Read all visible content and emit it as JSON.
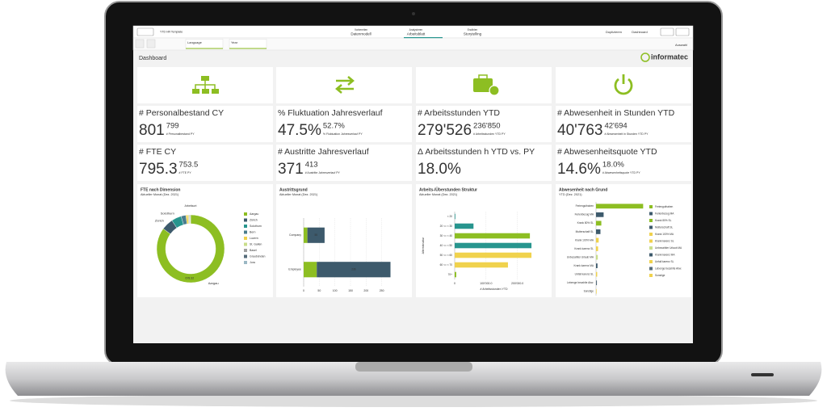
{
  "toolbar": {
    "app_name": "YTD HR Template",
    "tabs": [
      {
        "caption": "Vorbereiten",
        "label": "Datenmodell"
      },
      {
        "caption": "Analysieren",
        "label": "Arbeitsblatt"
      },
      {
        "caption": "Erzählen",
        "label": "Storytelling"
      }
    ],
    "actions": [
      "Duplizieren",
      "Dashboard"
    ]
  },
  "filters": [
    "Language",
    "Year"
  ],
  "sheet": {
    "title": "Dashboard",
    "logo": "informatec",
    "selection": "Auswahl"
  },
  "kpis": [
    {
      "title": "# Personalbestand CY",
      "value": "801",
      "sub_value": "799",
      "sub_label": "# Personalbestand PY"
    },
    {
      "title": "% Fluktuation Jahresverlauf",
      "value": "47.5%",
      "sub_value": "52.7%",
      "sub_label": "% Fluktuation Jahresverlauf PY"
    },
    {
      "title": "# Arbeitsstunden YTD",
      "value": "279'526",
      "sub_value": "236'850",
      "sub_label": "# Arbeitsstunden YTD PY"
    },
    {
      "title": "# Abwesenheit in Stunden YTD",
      "value": "40'763",
      "sub_value": "42'694",
      "sub_label": "# Abwesenheit in Stunden YTD PY"
    },
    {
      "title": "# FTE CY",
      "value": "795.3",
      "sub_value": "753.5",
      "sub_label": "# FTE PY"
    },
    {
      "title": "# Austritte Jahresverlauf",
      "value": "371",
      "sub_value": "413",
      "sub_label": "# Austritte Jahresverlauf PY"
    },
    {
      "title": "Δ Arbeitsstunden h YTD vs. PY",
      "value": "18.0%"
    },
    {
      "title": "# Abwesenheitsquote YTD",
      "value": "14.6%",
      "sub_value": "18.0%",
      "sub_label": "# Abwesenheitsquote YTD PY"
    }
  ],
  "charts": [
    {
      "type": "donut",
      "title": "FTE nach Dimension",
      "subtitle": "Aktueller Monat (Dez. 2021)",
      "dimension": "Arbeitsort",
      "categories": [
        "Aargau",
        "Zürich",
        "Solothurn",
        "Bern",
        "Luzern",
        "St. Gallen",
        "Basel",
        "Graubünden",
        "Jura"
      ],
      "values": [
        678.32,
        45,
        38,
        18,
        8,
        4,
        3,
        2,
        1
      ],
      "colors": [
        "#8dbe22",
        "#3d5a6c",
        "#27958e",
        "#4a7d8e",
        "#f0d24d",
        "#c9de8a",
        "#a0a0a0",
        "#556b7a",
        "#9bb8c4"
      ]
    },
    {
      "type": "stacked",
      "title": "Austrittsgrund",
      "subtitle": "Aktueller Monat (Dez. 2021)",
      "categories": [
        "Company",
        "Employee"
      ],
      "series": [
        {
          "color": "#8dbe22",
          "values": [
            12,
            42
          ]
        },
        {
          "color": "#3d5a6c",
          "values": [
            55,
            236
          ]
        }
      ],
      "xlim": [
        0,
        300
      ],
      "xticks": [
        0,
        50,
        100,
        150,
        200,
        250
      ]
    },
    {
      "type": "barh",
      "title": "Arbeits-/Überstunden Struktur",
      "subtitle": "Aktueller Monat (Dez. 2021)",
      "y_label": "Altersstruktur",
      "x_label": "# Arbeitsstunden YTD",
      "categories": [
        "< 20",
        "20 <= < 30",
        "30 <= < 40",
        "40 <= < 50",
        "50 <= < 60",
        "60 <= < 70",
        "70+"
      ],
      "values": [
        2000,
        60000,
        240000,
        245000,
        245000,
        170000,
        5000
      ],
      "colors": [
        "#27958e",
        "#27958e",
        "#8dbe22",
        "#27958e",
        "#f0d24d",
        "#f0d24d",
        "#8dbe22"
      ],
      "xlim": [
        0,
        250000
      ],
      "xticks": [
        0,
        {
          "value": 100000,
          "label": "100'000.0"
        },
        {
          "value": 200000,
          "label": "200'000.0"
        }
      ]
    },
    {
      "type": "barh",
      "title": "Abwesenheit nach Grund",
      "subtitle": "YTD (Dez. 2021)",
      "legend": true,
      "categories": [
        "Ferienguthaben",
        "Ferienbezug MA",
        "Krank 80% SL",
        "Mutterschaft SL",
        "Krank 100% MA",
        "Krank karenz SL",
        "Unbezahlter Urlaub MA",
        "Krank karenz MA",
        "Unfall karenz SL",
        "Lebenge bezahlte Abw.",
        "Sonstige"
      ],
      "values": [
        16000,
        2580,
        1800,
        1500,
        900,
        700,
        600,
        500,
        400,
        300,
        200
      ],
      "colors": [
        "#8dbe22",
        "#3d5a6c",
        "#8dbe22",
        "#3d5a6c",
        "#f0d24d",
        "#f0d24d",
        "#c9de8a",
        "#3d5a6c",
        "#f0d24d",
        "#556b7a",
        "#f0d24d"
      ],
      "xlim": [
        0,
        17000
      ]
    }
  ]
}
